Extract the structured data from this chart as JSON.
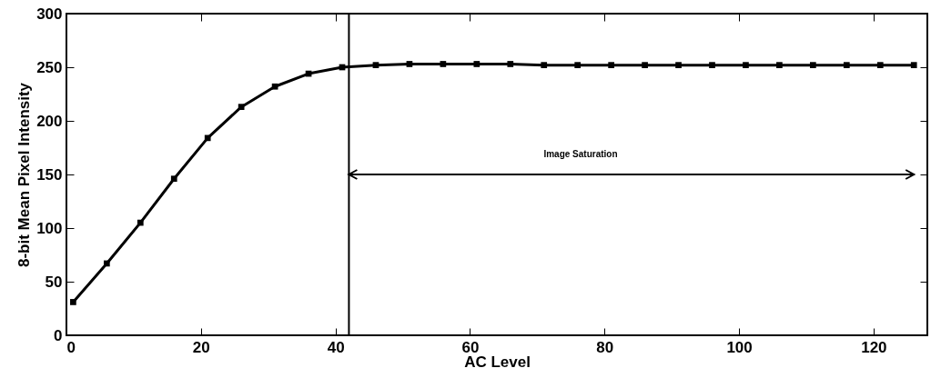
{
  "chart_data": {
    "type": "line",
    "xlabel": "AC Level",
    "ylabel": "8-bit Mean Pixel Intensity",
    "x": [
      1,
      6,
      11,
      16,
      21,
      26,
      31,
      36,
      41,
      46,
      51,
      56,
      61,
      66,
      71,
      76,
      81,
      86,
      91,
      96,
      101,
      106,
      111,
      116,
      121,
      126
    ],
    "series": [
      {
        "color": "#000000",
        "values": [
          31,
          67,
          105,
          146,
          184,
          213,
          232,
          244,
          250,
          252,
          253,
          253,
          253,
          253,
          252,
          252,
          252,
          252,
          252,
          252,
          252,
          252,
          252,
          252,
          252,
          252
        ]
      },
      {
        "type": "line",
        "color": "#000000",
        "x": [
          42,
          126
        ],
        "values": [
          150,
          150
        ],
        "marker": "none"
      }
    ],
    "xlim": [
      0,
      128
    ],
    "xticks": [
      0,
      20,
      40,
      60,
      80,
      100,
      120
    ],
    "ylim": [
      0,
      300
    ],
    "yticks": [
      0,
      50,
      100,
      150,
      200,
      250,
      300
    ],
    "ref_lines": [
      {
        "axis": "x",
        "value": 42,
        "label": null
      }
    ],
    "annotations": [
      "Image Saturation"
    ],
    "marker": "square",
    "line_style": "solid",
    "grid": false
  }
}
